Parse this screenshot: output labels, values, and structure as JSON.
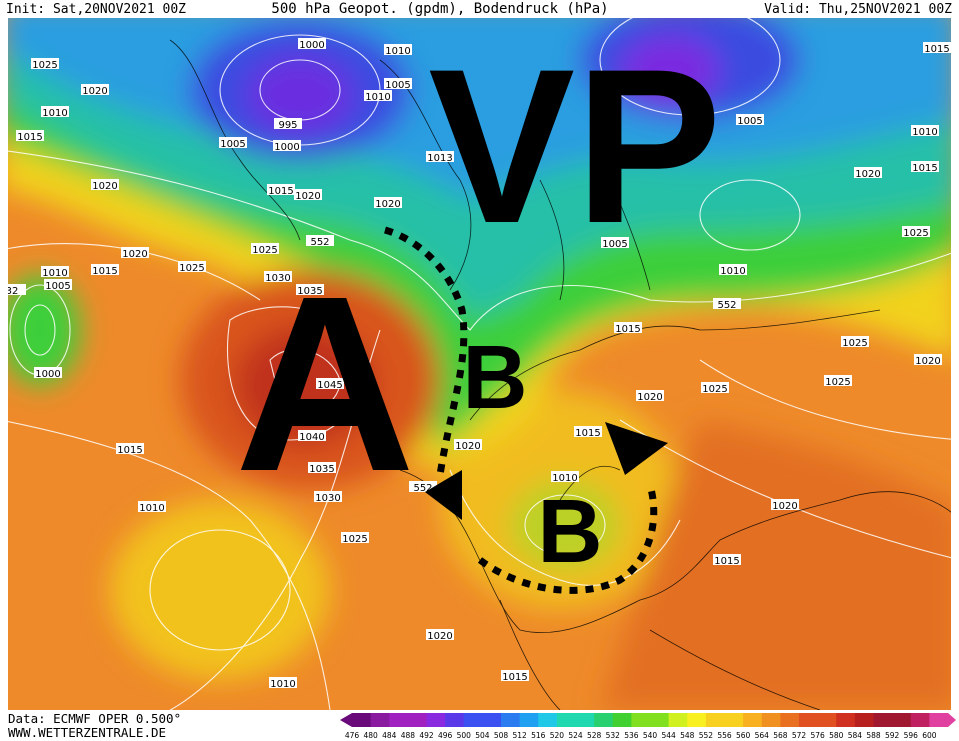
{
  "header": {
    "init": "Init: Sat,20NOV2021 00Z",
    "title": "500 hPa Geopot. (gpdm), Bodendruck (hPa)",
    "valid": "Valid: Thu,25NOV2021 00Z"
  },
  "annotations": {
    "vp": "VP",
    "high": "A",
    "low_north": "B",
    "low_south": "B"
  },
  "isobars": [
    "1025",
    "1020",
    "1010",
    "1015",
    "1020",
    "1020",
    "1025",
    "1015",
    "1010",
    "1005",
    "1030",
    "1035",
    "1045",
    "1040",
    "1035",
    "1030",
    "1025",
    "1020",
    "1015",
    "1010",
    "1020",
    "1025",
    "1025",
    "1025",
    "1020",
    "1015",
    "1015",
    "1010",
    "1020",
    "1015",
    "1010",
    "1015",
    "1020",
    "1005",
    "1010",
    "1020",
    "1025",
    "1015",
    "1010",
    "1005",
    "1015",
    "1000",
    "1010",
    "1005",
    "1010",
    "995",
    "1000",
    "1005",
    "1015",
    "1020",
    "1025",
    "1020",
    "1013",
    "552",
    "552",
    "552",
    "1000",
    "32"
  ],
  "scale": {
    "labels": [
      476,
      480,
      484,
      488,
      492,
      496,
      500,
      504,
      508,
      512,
      516,
      520,
      524,
      528,
      532,
      536,
      540,
      544,
      548,
      552,
      556,
      560,
      564,
      568,
      572,
      576,
      580,
      584,
      588,
      592,
      596,
      600
    ]
  },
  "footer": {
    "data": "Data: ECMWF OPER 0.500°",
    "site": "WWW.WETTERZENTRALE.DE"
  }
}
